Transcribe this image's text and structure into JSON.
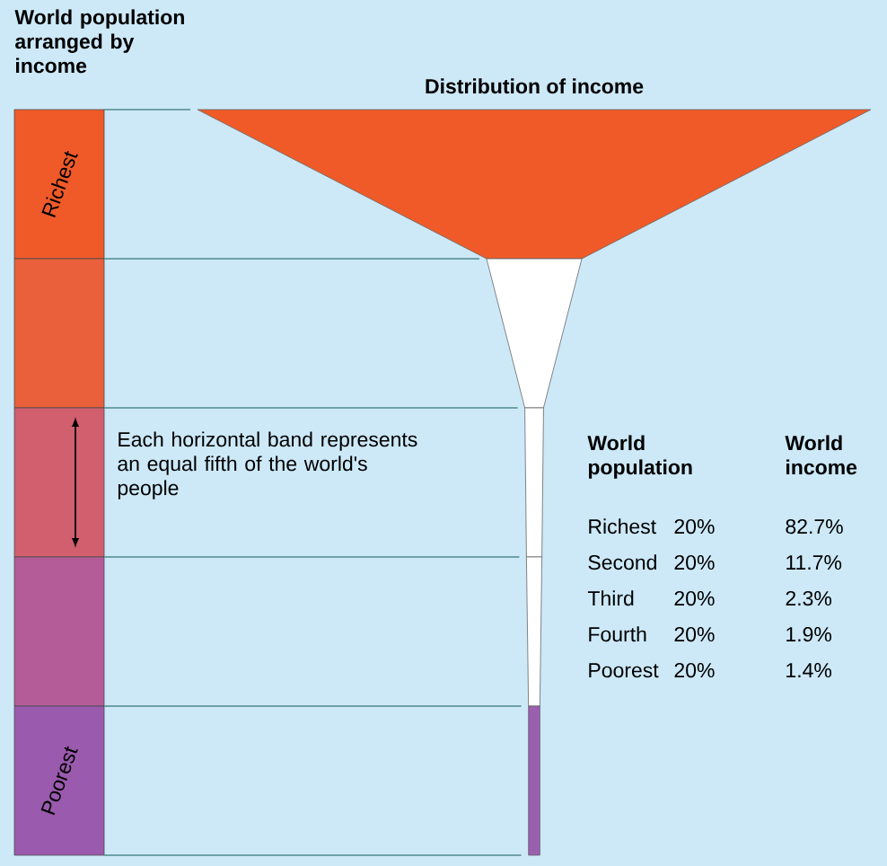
{
  "chart_data": {
    "type": "other",
    "title": "Distribution of income",
    "ylabel": "World population arranged by income",
    "categories": [
      "Richest",
      "Second",
      "Third",
      "Fourth",
      "Poorest"
    ],
    "colors": [
      "#f05a28",
      "#e9603a",
      "#d25f6e",
      "#b45c98",
      "#9a5aae"
    ],
    "series": [
      {
        "name": "World population",
        "values": [
          20,
          20,
          20,
          20,
          20
        ],
        "value_labels": [
          "20%",
          "20%",
          "20%",
          "20%",
          "20%"
        ]
      },
      {
        "name": "World income",
        "values": [
          82.7,
          11.7,
          2.3,
          1.9,
          1.4
        ],
        "value_labels": [
          "82.7%",
          "11.7%",
          "2.3%",
          "1.9%",
          "1.4%"
        ],
        "colors": [
          "#f05a28",
          "#ffffff",
          "#ffffff",
          "#ffffff",
          "#9b5fb0"
        ]
      }
    ],
    "annotations": [
      "Each horizontal band represents an equal fifth of the world's people"
    ]
  }
}
